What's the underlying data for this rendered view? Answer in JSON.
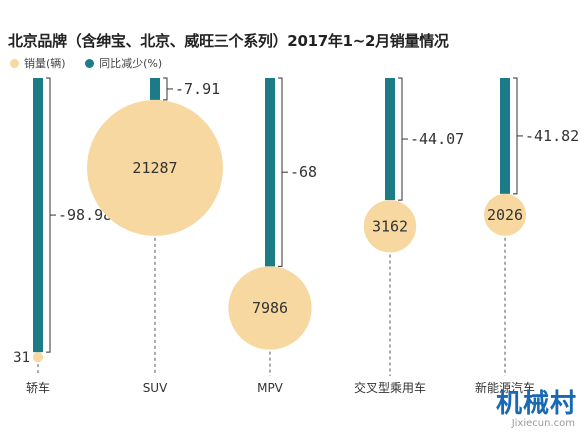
{
  "chart_data": {
    "type": "bar",
    "title": "北京品牌（含绅宝、北京、威旺三个系列）2017年1~2月销量情况",
    "legend": [
      {
        "label": "销量(辆)",
        "color": "#f7d8a0"
      },
      {
        "label": "同比减少(%)",
        "color": "#1b7b86"
      }
    ],
    "categories": [
      "轿车",
      "SUV",
      "MPV",
      "交叉型乘用车",
      "新能源汽车"
    ],
    "series": [
      {
        "name": "销量(辆)",
        "values": [
          31,
          21287,
          7986,
          3162,
          2026
        ],
        "labels": [
          "31",
          "21287",
          "7986",
          "3162",
          "2026"
        ]
      },
      {
        "name": "同比减少(%)",
        "values": [
          -98.98,
          -7.91,
          -68,
          -44.07,
          -41.82
        ],
        "labels": [
          "-98.98",
          "-7.91",
          "-68",
          "-44.07",
          "-41.82"
        ]
      }
    ],
    "colors": {
      "bubble": "#f7d8a0",
      "bar": "#1b7b86",
      "leader": "#333333"
    }
  },
  "watermark": {
    "logo": "机械村",
    "url": "Jixiecun.com"
  }
}
